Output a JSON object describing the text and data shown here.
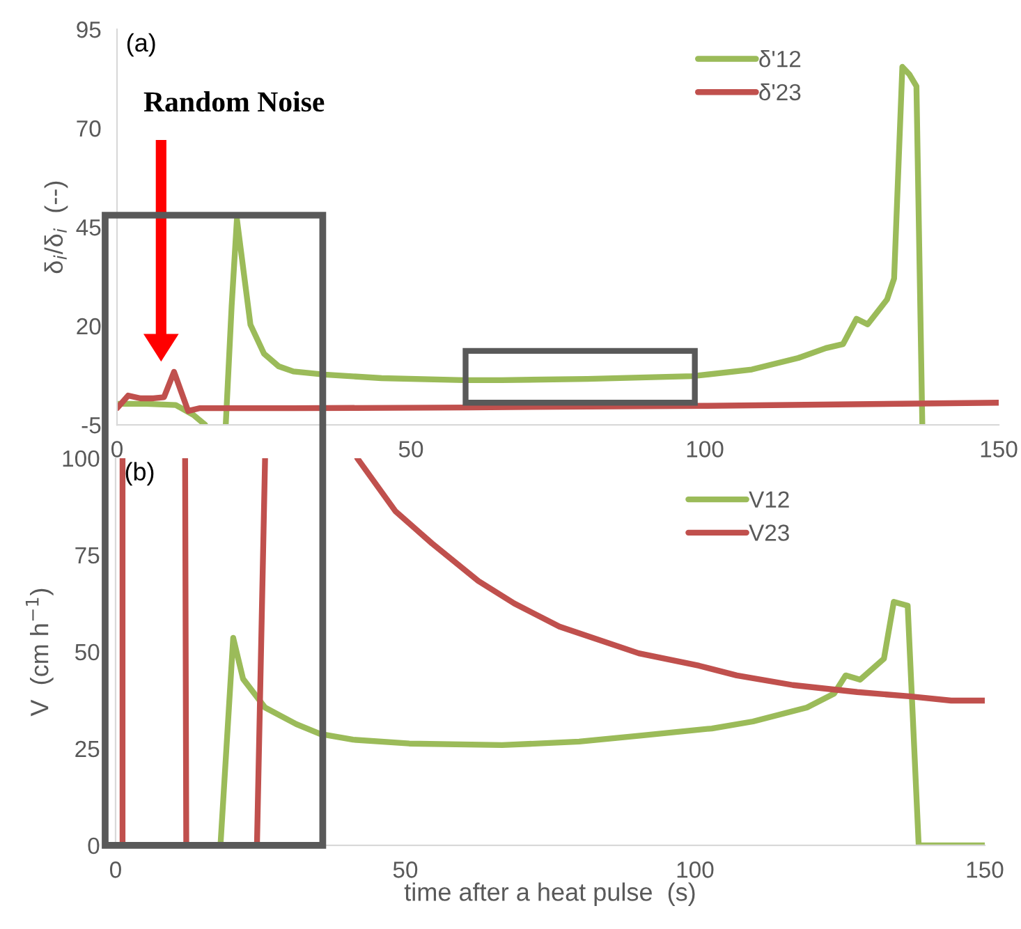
{
  "chart_data": [
    {
      "type": "line",
      "ylabel": "δ$_{i}$/δ$_{i}$  (--)",
      "xlim": [
        0,
        150
      ],
      "xticks": [
        0,
        50,
        100,
        150
      ],
      "ylim": [
        -5,
        95
      ],
      "yticks": [
        -5,
        20,
        45,
        70,
        95
      ],
      "grid": false,
      "legend": "top right",
      "marker": "none",
      "line_style": "solid",
      "annotations": [
        "(a)",
        "Random Noise"
      ],
      "series": [
        {
          "name": "δ'12",
          "color": "#9bbb59",
          "x": [
            0,
            5,
            10,
            13,
            15,
            null,
            18.5,
            19.5,
            20.4,
            21,
            22.7,
            25,
            27.5,
            30,
            35.3,
            45,
            59,
            65.4,
            80,
            97.9,
            108,
            115.9,
            120.6,
            123.5,
            125.8,
            127.7,
            131,
            132.2,
            133.6,
            134.8,
            136,
            137
          ],
          "values": [
            0.3,
            0.3,
            0,
            -2.5,
            -5,
            null,
            -5,
            25,
            47,
            40,
            20.3,
            13,
            9.8,
            8.5,
            7.7,
            6.8,
            6.3,
            6.3,
            6.6,
            7.3,
            9,
            11.9,
            14.4,
            15.4,
            21.8,
            20.4,
            26.7,
            32,
            85.5,
            83.6,
            80.6,
            -5
          ]
        },
        {
          "name": "δ'23",
          "color": "#c0504d",
          "x": [
            0,
            1.9,
            4,
            6.2,
            8,
            9.7,
            12.1,
            14,
            30,
            60,
            100,
            150
          ],
          "values": [
            -0.8,
            2.4,
            1.7,
            1.7,
            2,
            8.4,
            -1.5,
            -0.8,
            -0.8,
            -0.6,
            -0.2,
            0.6
          ]
        }
      ]
    },
    {
      "type": "line",
      "xlabel": "time after a heat pulse  (s)",
      "ylabel": "V  (cm h$^{−1}$)",
      "xlim": [
        0,
        150
      ],
      "xticks": [
        0,
        50,
        100,
        150
      ],
      "ylim": [
        0,
        100
      ],
      "yticks": [
        0,
        25,
        50,
        75,
        100
      ],
      "grid": false,
      "legend": "top right",
      "marker": "none",
      "line_style": "solid",
      "annotations": [
        "(b)"
      ],
      "series": [
        {
          "name": "V12",
          "color": "#9bbb59",
          "x": [
            18.1,
            20.3,
            22,
            25.8,
            31.2,
            35.3,
            41,
            50.7,
            66.7,
            80,
            90.8,
            102.9,
            110,
            119.3,
            124,
            126,
            128.5,
            132.6,
            134.3,
            136.7,
            138.6,
            150
          ],
          "values": [
            0,
            53.6,
            43,
            35.6,
            31.3,
            28.8,
            27.3,
            26.3,
            25.9,
            26.8,
            28.4,
            30.2,
            32,
            35.6,
            39.2,
            43.9,
            42.8,
            48.2,
            62.9,
            61.9,
            0,
            0
          ]
        },
        {
          "name": "V23",
          "color": "#c0504d",
          "x": [
            1.2,
            1.2,
            null,
            12,
            12.2,
            24.4,
            25.8,
            null,
            41.7,
            48.3,
            54.6,
            62.6,
            68.8,
            76.6,
            90.3,
            100.7,
            107.2,
            116.9,
            128,
            137,
            144.2,
            150
          ],
          "values": [
            0,
            100,
            null,
            100,
            0,
            0,
            100,
            null,
            100,
            86.3,
            78,
            68.3,
            62.5,
            56.5,
            49.6,
            46.4,
            43.9,
            41.4,
            39.6,
            38.5,
            37.4,
            37.4
          ]
        }
      ]
    }
  ]
}
